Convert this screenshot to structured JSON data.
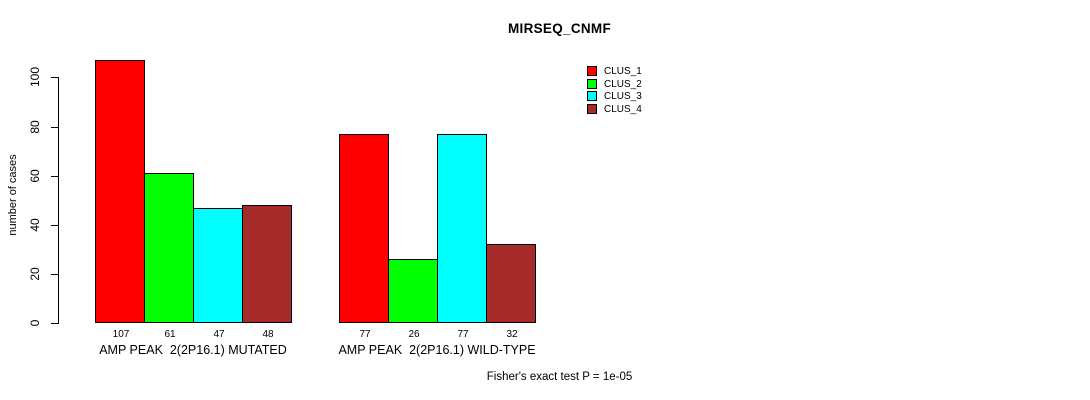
{
  "chart_data": {
    "type": "bar",
    "title": "MIRSEQ_CNMF",
    "xlabel": "",
    "ylabel": "number of cases",
    "ylim": [
      0,
      100
    ],
    "yticks": [
      0,
      20,
      40,
      60,
      80,
      100
    ],
    "grid": false,
    "legend_position": "right",
    "categories": [
      "AMP PEAK  2(2P16.1) MUTATED",
      "AMP PEAK  2(2P16.1) WILD-TYPE"
    ],
    "series": [
      {
        "name": "CLUS_1",
        "color": "#FF0000",
        "values": [
          107,
          77
        ]
      },
      {
        "name": "CLUS_2",
        "color": "#00FF00",
        "values": [
          61,
          26
        ]
      },
      {
        "name": "CLUS_3",
        "color": "#00FFFF",
        "values": [
          47,
          77
        ]
      },
      {
        "name": "CLUS_4",
        "color": "#A52A2A",
        "values": [
          48,
          32
        ]
      }
    ],
    "bar_value_labels": [
      [
        107,
        61,
        47,
        48
      ],
      [
        77,
        26,
        77,
        32
      ]
    ],
    "bar_border_color": "#000000",
    "annotation": "Fisher's exact test P = 1e-05"
  }
}
